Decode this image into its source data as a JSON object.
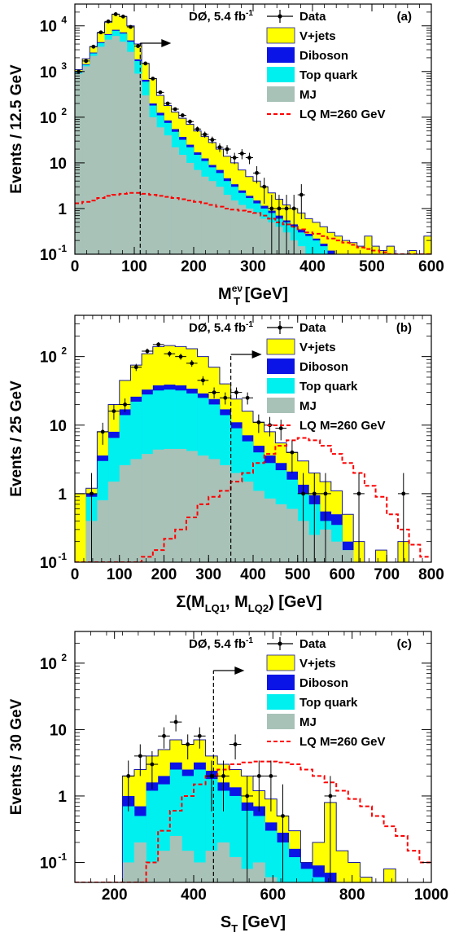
{
  "colors": {
    "vjets": "#ffff00",
    "diboson": "#0a14e6",
    "top": "#00f0f0",
    "mj": "#a8c2b8",
    "lq": "#ff0000",
    "data": "#000000"
  },
  "legend_labels": {
    "data": "Data",
    "vjets": "V+jets",
    "diboson": "Diboson",
    "top": "Top quark",
    "mj": "MJ",
    "lq": "LQ M=260 GeV"
  },
  "chart_data": [
    {
      "type": "area",
      "panel": "(a)",
      "experiment": "DØ, 5.4 fb",
      "lumi_sup": "-1",
      "ylabel": "Events / 12.5 GeV",
      "xlabel_main": "M",
      "xlabel_sub": "T",
      "xlabel_sup": "eν",
      "xlabel_unit": " [GeV]",
      "log_y": true,
      "xlim": [
        0,
        600
      ],
      "ylim": [
        0.1,
        30000
      ],
      "xticks": [
        "0",
        "100",
        "200",
        "300",
        "400",
        "500",
        "600"
      ],
      "yticks": [
        {
          "v": 0.1,
          "b": "10",
          "e": "-1"
        },
        {
          "v": 1,
          "b": "1",
          "e": ""
        },
        {
          "v": 10,
          "b": "10",
          "e": ""
        },
        {
          "v": 100,
          "b": "10",
          "e": "2"
        },
        {
          "v": 1000,
          "b": "10",
          "e": "3"
        },
        {
          "v": 10000,
          "b": "10",
          "e": "4"
        }
      ],
      "cut": {
        "x": 110,
        "label": "→"
      },
      "bin_width": 12.5,
      "x_start": 0,
      "mj": [
        900,
        1300,
        2200,
        3500,
        5000,
        6000,
        4500,
        2700,
        900,
        300,
        100,
        60,
        40,
        22,
        15,
        10,
        7,
        5,
        4,
        3,
        2,
        1.5,
        1.2,
        1,
        0.8,
        0.6,
        0.5,
        0.4,
        0.3,
        0.2,
        0.15,
        0.1,
        0.1,
        0.1,
        0.1,
        0.1,
        0.1,
        0.1,
        0.1,
        0.1,
        0.1,
        0.1,
        0.1,
        0.1,
        0.1,
        0.1,
        0.1,
        0.1
      ],
      "top": [
        950,
        1400,
        2500,
        4200,
        6300,
        7800,
        6800,
        4500,
        1700,
        600,
        180,
        110,
        75,
        48,
        32,
        22,
        15,
        11,
        8,
        6,
        4,
        3,
        2.2,
        1.7,
        1.3,
        1,
        0.8,
        0.6,
        0.5,
        0.4,
        0.3,
        0.25,
        0.2,
        0.15,
        0.1,
        0.1,
        0.1,
        0.1,
        0.1,
        0.1,
        0.1,
        0.1,
        0.1,
        0.1,
        0.1,
        0.1,
        0.1,
        0.1
      ],
      "diboson": [
        970,
        1450,
        2600,
        4400,
        6600,
        8200,
        7200,
        4800,
        1850,
        660,
        200,
        125,
        85,
        55,
        37,
        25,
        17,
        12.5,
        9,
        7,
        4.6,
        3.4,
        2.5,
        1.9,
        1.5,
        1.15,
        0.9,
        0.7,
        0.55,
        0.45,
        0.35,
        0.28,
        0.22,
        0.17,
        0.12,
        0.1,
        0.1,
        0.1,
        0.1,
        0.1,
        0.1,
        0.1,
        0.1,
        0.1,
        0.1,
        0.1,
        0.1,
        0.1
      ],
      "total": [
        1100,
        1900,
        3500,
        7000,
        12000,
        18000,
        16000,
        10000,
        4000,
        1500,
        700,
        300,
        180,
        130,
        95,
        70,
        50,
        38,
        28,
        20,
        14,
        10,
        7,
        5,
        4,
        3,
        2.2,
        1.6,
        1.2,
        1,
        0.8,
        0.6,
        0.5,
        0.4,
        0.3,
        0.25,
        0.2,
        0.18,
        0.15,
        0.25,
        0.15,
        0.12,
        0.15,
        0.1,
        0.1,
        0.12,
        0.1,
        0.25
      ],
      "lq": [
        1.3,
        1.4,
        1.5,
        1.7,
        1.9,
        2.0,
        2.1,
        2.2,
        2.2,
        2.1,
        2.0,
        1.9,
        1.8,
        1.7,
        1.6,
        1.5,
        1.4,
        1.3,
        1.2,
        1.1,
        1.0,
        0.95,
        0.9,
        0.85,
        0.8,
        0.7,
        0.6,
        0.5,
        0.45,
        0.4,
        0.35,
        0.3,
        0.28,
        0.25,
        0.22,
        0.2,
        0.18,
        0.16,
        0.14,
        0.13,
        0.12,
        0.11,
        0.1,
        0.1,
        0.1,
        0.1,
        0.1,
        0.1
      ],
      "data": [
        [
          6.25,
          1000
        ],
        [
          18.75,
          1700
        ],
        [
          31.25,
          3500
        ],
        [
          43.75,
          7200
        ],
        [
          56.25,
          12500
        ],
        [
          68.75,
          18000
        ],
        [
          81.25,
          16000
        ],
        [
          93.75,
          9500
        ],
        [
          106.25,
          3600
        ],
        [
          118.75,
          1500
        ],
        [
          131.25,
          700
        ],
        [
          143.75,
          350
        ],
        [
          156.25,
          200
        ],
        [
          168.75,
          150
        ],
        [
          181.25,
          110
        ],
        [
          193.75,
          80
        ],
        [
          206.25,
          55
        ],
        [
          218.75,
          42
        ],
        [
          231.25,
          32
        ],
        [
          243.75,
          22
        ],
        [
          256.25,
          20
        ],
        [
          268.75,
          13
        ],
        [
          281.25,
          16
        ],
        [
          293.75,
          13
        ],
        [
          306.25,
          6
        ],
        [
          318.75,
          3
        ],
        [
          331.25,
          1
        ],
        [
          343.75,
          1
        ],
        [
          356.25,
          1
        ],
        [
          368.75,
          1
        ],
        [
          381.25,
          2
        ]
      ]
    },
    {
      "type": "area",
      "panel": "(b)",
      "experiment": "DØ, 5.4 fb",
      "lumi_sup": "-1",
      "ylabel": "Events / 25 GeV",
      "xlabel_pre": "Σ(M",
      "xlabel_sub1": "LQ1",
      "xlabel_mid": ", M",
      "xlabel_sub2": "LQ2",
      "xlabel_post": ") [GeV]",
      "log_y": true,
      "xlim": [
        0,
        800
      ],
      "ylim": [
        0.1,
        400
      ],
      "xticks": [
        "0",
        "100",
        "200",
        "300",
        "400",
        "500",
        "600",
        "700",
        "800"
      ],
      "yticks": [
        {
          "v": 0.1,
          "b": "10",
          "e": "-1"
        },
        {
          "v": 1,
          "b": "1",
          "e": ""
        },
        {
          "v": 10,
          "b": "10",
          "e": ""
        },
        {
          "v": 100,
          "b": "10",
          "e": "2"
        }
      ],
      "cut": {
        "x": 350,
        "label": "→"
      },
      "bin_width": 25,
      "x_start": 0,
      "mj": [
        0.1,
        0.4,
        0.8,
        1.5,
        2.6,
        3.2,
        3.8,
        4.4,
        4.5,
        4.5,
        4.2,
        3.6,
        3.2,
        2.6,
        2.0,
        1.5,
        1.1,
        0.85,
        0.7,
        0.6,
        0.4,
        0.25,
        0.3,
        0.2,
        0.15,
        0.1,
        0.1,
        0.1,
        0.1,
        0.1,
        0.1,
        0.1
      ],
      "top": [
        0.1,
        0.9,
        3,
        6.5,
        14,
        22,
        28,
        32,
        33,
        32,
        29,
        25,
        20,
        14,
        9,
        5.8,
        4,
        2.8,
        2.2,
        1.6,
        1.0,
        0.7,
        0.4,
        0.35,
        0.15,
        0.1,
        0.1,
        0.1,
        0.1,
        0.1,
        0.1,
        0.1
      ],
      "diboson": [
        0.1,
        1.0,
        3.6,
        8,
        17,
        26,
        33,
        38,
        39,
        38,
        34,
        29,
        24,
        17,
        11,
        7.1,
        5,
        3.6,
        2.8,
        2.1,
        1.35,
        0.95,
        0.55,
        0.5,
        0.2,
        0.1,
        0.1,
        0.1,
        0.1,
        0.1,
        0.1,
        0.1
      ],
      "total": [
        1,
        1.2,
        8,
        20,
        45,
        75,
        110,
        140,
        145,
        140,
        130,
        100,
        70,
        40,
        24,
        16,
        11,
        8,
        5.5,
        4,
        3,
        2,
        1.5,
        1.1,
        0.5,
        0.2,
        0.1,
        0.15,
        0.1,
        0.2,
        0.1,
        0.1
      ],
      "lq": [
        0.1,
        0.1,
        0.1,
        0.1,
        0.1,
        0.1,
        0.12,
        0.15,
        0.22,
        0.3,
        0.45,
        0.7,
        0.9,
        1.1,
        1.5,
        2.0,
        2.8,
        3.8,
        5.0,
        6.0,
        6.5,
        6.0,
        5.0,
        3.8,
        2.8,
        2.0,
        1.3,
        0.9,
        0.5,
        0.3,
        0.18,
        0.12
      ],
      "data": [
        [
          37.5,
          1
        ],
        [
          62.5,
          8
        ],
        [
          87.5,
          16
        ],
        [
          112.5,
          20
        ],
        [
          137.5,
          70
        ],
        [
          162.5,
          120
        ],
        [
          187.5,
          150
        ],
        [
          212.5,
          110
        ],
        [
          237.5,
          100
        ],
        [
          262.5,
          80
        ],
        [
          287.5,
          45
        ],
        [
          312.5,
          30
        ],
        [
          337.5,
          25
        ],
        [
          362.5,
          30
        ],
        [
          387.5,
          25
        ],
        [
          412.5,
          11
        ],
        [
          437.5,
          10
        ],
        [
          462.5,
          9
        ],
        [
          487.5,
          4
        ],
        [
          512.5,
          1
        ],
        [
          537.5,
          1
        ],
        [
          562.5,
          1
        ],
        [
          637.5,
          1
        ],
        [
          737.5,
          1
        ]
      ]
    },
    {
      "type": "area",
      "panel": "(c)",
      "experiment": "DØ, 5.4 fb",
      "lumi_sup": "-1",
      "ylabel": "Events / 30 GeV",
      "xlabel_main": "S",
      "xlabel_sub": "T",
      "xlabel_unit": " [GeV]",
      "log_y": true,
      "xlim": [
        100,
        1000
      ],
      "ylim": [
        0.05,
        300
      ],
      "xticks": [
        "200",
        "400",
        "600",
        "800",
        "1000"
      ],
      "xtick_values": [
        200,
        400,
        600,
        800,
        1000
      ],
      "yticks": [
        {
          "v": 0.1,
          "b": "10",
          "e": "-1"
        },
        {
          "v": 1,
          "b": "1",
          "e": ""
        },
        {
          "v": 10,
          "b": "10",
          "e": ""
        },
        {
          "v": 100,
          "b": "10",
          "e": "2"
        }
      ],
      "cut": {
        "x": 450,
        "label": "→"
      },
      "bin_width": 30,
      "x_start": 100,
      "mj": [
        0.05,
        0.05,
        0.05,
        0.05,
        0.1,
        0.2,
        0.1,
        0.15,
        0.25,
        0.15,
        0.1,
        0.15,
        0.2,
        0.12,
        0.08,
        0.1,
        0.06,
        0.05,
        0.05,
        0.05,
        0.05,
        0.05,
        0.05,
        0.05,
        0.05,
        0.05,
        0.05,
        0.05,
        0.05,
        0.05
      ],
      "top": [
        0.05,
        0.05,
        0.05,
        0.05,
        0.7,
        0.5,
        1.2,
        1.5,
        2.5,
        2.0,
        2.5,
        1.8,
        1.2,
        1.0,
        0.6,
        0.5,
        0.3,
        0.2,
        0.12,
        0.08,
        0.06,
        0.05,
        0.05,
        0.05,
        0.05,
        0.05,
        0.05,
        0.05,
        0.05,
        0.05
      ],
      "diboson": [
        0.05,
        0.05,
        0.05,
        0.05,
        1.0,
        0.7,
        1.6,
        2.0,
        3.2,
        2.5,
        3.2,
        2.4,
        1.6,
        1.35,
        0.8,
        0.7,
        0.4,
        0.28,
        0.16,
        0.1,
        0.09,
        0.07,
        0.05,
        0.05,
        0.05,
        0.05,
        0.05,
        0.05,
        0.05,
        0.05
      ],
      "total": [
        0.05,
        0.05,
        0.05,
        0.05,
        2,
        2.5,
        4,
        5,
        7,
        6,
        7,
        4,
        3,
        2.5,
        2,
        1.2,
        0.9,
        0.5,
        0.3,
        0.1,
        0.2,
        0.8,
        0.15,
        0.1,
        0.06,
        0.05,
        0.08,
        0.05,
        0.05,
        0.05
      ],
      "lq": [
        0.05,
        0.05,
        0.05,
        0.05,
        0.05,
        0.05,
        0.1,
        0.3,
        0.6,
        1.0,
        1.5,
        2.0,
        2.5,
        3.0,
        3.2,
        3.3,
        3.3,
        3.2,
        3.0,
        2.5,
        2.0,
        1.6,
        1.2,
        0.9,
        0.7,
        0.5,
        0.35,
        0.25,
        0.15,
        0.1
      ],
      "data": [
        [
          235,
          2
        ],
        [
          265,
          4
        ],
        [
          295,
          3
        ],
        [
          325,
          8
        ],
        [
          355,
          13
        ],
        [
          385,
          6
        ],
        [
          415,
          8
        ],
        [
          445,
          2
        ],
        [
          475,
          2
        ],
        [
          505,
          6
        ],
        [
          535,
          1
        ],
        [
          565,
          2
        ],
        [
          595,
          2
        ],
        [
          625,
          0.5
        ],
        [
          745,
          1
        ]
      ]
    }
  ]
}
